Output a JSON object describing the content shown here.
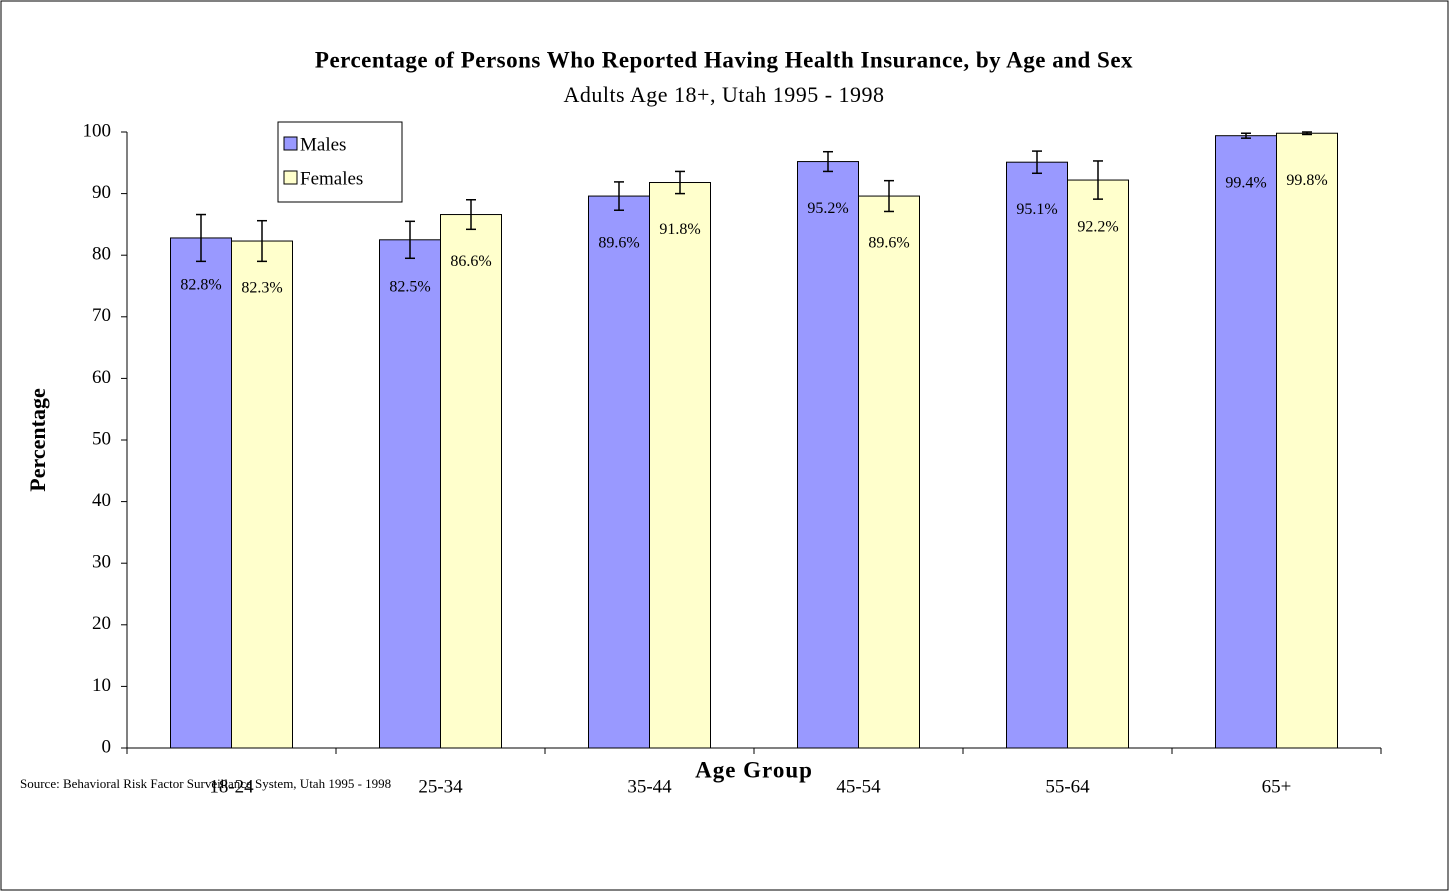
{
  "chart_data": {
    "type": "bar",
    "title": "Percentage of Persons Who Reported Having Health Insurance, by Age and Sex",
    "subtitle": "Adults Age 18+, Utah 1995 - 1998",
    "xlabel": "Age Group",
    "ylabel": "Percentage",
    "source": "Source: Behavioral Risk Factor Surveillance System, Utah 1995 - 1998",
    "categories": [
      "18-24",
      "25-34",
      "35-44",
      "45-54",
      "55-64",
      "65+"
    ],
    "series": [
      {
        "name": "Males",
        "color": "#9999ff",
        "values": [
          82.8,
          82.5,
          89.6,
          95.2,
          95.1,
          99.4
        ],
        "value_labels": [
          "82.8%",
          "82.5%",
          "89.6%",
          "95.2%",
          "95.1%",
          "99.4%"
        ],
        "errors": [
          3.8,
          3.0,
          2.3,
          1.6,
          1.8,
          0.4
        ]
      },
      {
        "name": "Females",
        "color": "#ffffcc",
        "values": [
          82.3,
          86.6,
          91.8,
          89.6,
          92.2,
          99.8
        ],
        "value_labels": [
          "82.3%",
          "86.6%",
          "91.8%",
          "89.6%",
          "92.2%",
          "99.8%"
        ],
        "errors": [
          3.3,
          2.4,
          1.8,
          2.5,
          3.1,
          0.2
        ]
      }
    ],
    "ylim": [
      0,
      100
    ],
    "yticks": [
      0,
      10,
      20,
      30,
      40,
      50,
      60,
      70,
      80,
      90,
      100
    ],
    "legend": "upper left",
    "grid": false
  }
}
